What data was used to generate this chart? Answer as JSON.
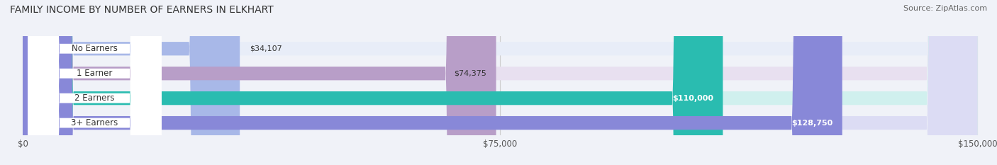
{
  "title": "FAMILY INCOME BY NUMBER OF EARNERS IN ELKHART",
  "source": "Source: ZipAtlas.com",
  "categories": [
    "No Earners",
    "1 Earner",
    "2 Earners",
    "3+ Earners"
  ],
  "values": [
    34107,
    74375,
    110000,
    128750
  ],
  "bar_colors": [
    "#a8b8e8",
    "#b89ec8",
    "#2abcb0",
    "#8888d8"
  ],
  "bar_bg_colors": [
    "#e8edf8",
    "#e8e0f0",
    "#d0f0ee",
    "#dcdcf4"
  ],
  "max_value": 150000,
  "x_ticks": [
    0,
    75000,
    150000
  ],
  "x_tick_labels": [
    "$0",
    "$75,000",
    "$150,000"
  ],
  "label_color_inside": [
    "#333333",
    "#333333",
    "#ffffff",
    "#ffffff"
  ],
  "background_color": "#f0f2f8",
  "bar_height": 0.55,
  "figsize": [
    14.06,
    2.33
  ],
  "dpi": 100
}
